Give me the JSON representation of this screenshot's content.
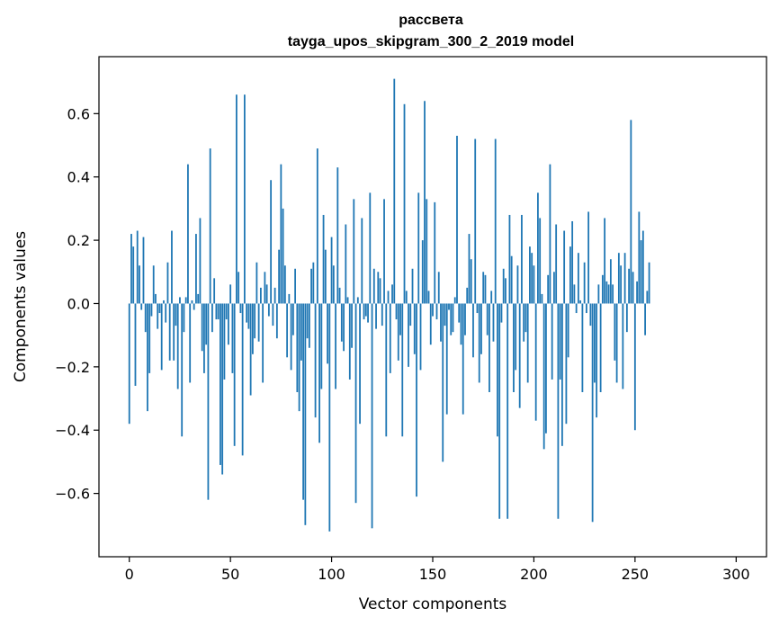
{
  "chart_data": {
    "type": "bar",
    "title": "рассвета",
    "subtitle": "tayga_upos_skipgram_300_2_2019 model",
    "xlabel": "Vector components",
    "ylabel": "Components values",
    "xlim": [
      -15,
      315
    ],
    "ylim": [
      -0.8,
      0.78
    ],
    "x_ticks": [
      0,
      50,
      100,
      150,
      200,
      250,
      300
    ],
    "y_ticks": [
      -0.6,
      -0.4,
      -0.2,
      0.0,
      0.2,
      0.4,
      0.6
    ],
    "x_tick_labels": [
      "0",
      "50",
      "100",
      "150",
      "200",
      "250",
      "300"
    ],
    "y_tick_labels": [
      "−0.6",
      "−0.4",
      "−0.2",
      "0.0",
      "0.2",
      "0.4",
      "0.6"
    ],
    "grid": false,
    "bar_color": "#1f77b4",
    "values": [
      -0.38,
      0.22,
      0.18,
      -0.26,
      0.23,
      0.12,
      -0.02,
      0.21,
      -0.09,
      -0.34,
      -0.22,
      -0.04,
      0.12,
      0.03,
      -0.08,
      -0.03,
      -0.21,
      0.01,
      -0.06,
      0.13,
      -0.18,
      0.23,
      -0.18,
      -0.07,
      -0.27,
      0.02,
      -0.42,
      -0.09,
      0.02,
      0.44,
      -0.25,
      0.01,
      -0.02,
      0.22,
      0.03,
      0.27,
      -0.15,
      -0.22,
      -0.13,
      -0.62,
      0.49,
      -0.09,
      0.08,
      -0.05,
      -0.05,
      -0.51,
      -0.54,
      -0.24,
      -0.05,
      -0.13,
      0.06,
      -0.22,
      -0.45,
      0.66,
      0.1,
      -0.03,
      -0.48,
      0.66,
      -0.06,
      -0.08,
      -0.29,
      -0.16,
      -0.11,
      0.13,
      -0.12,
      0.05,
      -0.25,
      0.1,
      0.06,
      -0.04,
      0.39,
      -0.07,
      0.05,
      -0.11,
      0.17,
      0.44,
      0.3,
      0.12,
      -0.17,
      0.03,
      -0.21,
      -0.1,
      0.11,
      -0.28,
      -0.34,
      -0.18,
      -0.62,
      -0.7,
      -0.11,
      -0.14,
      0.11,
      0.13,
      -0.36,
      0.49,
      -0.44,
      -0.27,
      0.28,
      0.17,
      -0.19,
      -0.72,
      0.21,
      0.12,
      -0.27,
      0.43,
      0.05,
      -0.12,
      -0.15,
      0.25,
      0.02,
      -0.24,
      -0.14,
      0.33,
      -0.63,
      0.02,
      -0.38,
      0.27,
      -0.05,
      -0.04,
      -0.06,
      0.35,
      -0.71,
      0.11,
      -0.08,
      0.1,
      0.08,
      -0.07,
      0.33,
      -0.42,
      0.04,
      -0.22,
      0.06,
      0.71,
      -0.05,
      -0.18,
      -0.1,
      -0.42,
      0.63,
      0.04,
      -0.2,
      -0.07,
      0.11,
      -0.16,
      -0.61,
      0.35,
      -0.21,
      0.2,
      0.64,
      0.33,
      0.04,
      -0.13,
      -0.04,
      0.32,
      -0.05,
      0.1,
      -0.12,
      -0.5,
      -0.07,
      -0.35,
      -0.02,
      -0.1,
      -0.09,
      0.02,
      0.53,
      -0.06,
      -0.13,
      -0.35,
      -0.1,
      0.05,
      0.22,
      0.14,
      -0.17,
      0.52,
      -0.03,
      -0.25,
      -0.16,
      0.1,
      0.09,
      -0.1,
      -0.28,
      0.04,
      -0.12,
      0.52,
      -0.42,
      -0.68,
      -0.06,
      0.11,
      0.08,
      -0.68,
      0.28,
      0.15,
      -0.28,
      -0.21,
      0.12,
      -0.33,
      0.28,
      -0.12,
      -0.09,
      -0.25,
      0.18,
      0.16,
      0.12,
      -0.37,
      0.35,
      0.27,
      0.03,
      -0.46,
      -0.41,
      0.09,
      0.44,
      -0.24,
      0.1,
      0.25,
      -0.68,
      -0.24,
      -0.45,
      0.23,
      -0.38,
      -0.17,
      0.18,
      0.26,
      0.06,
      -0.03,
      0.16,
      0.01,
      -0.28,
      0.13,
      -0.03,
      0.29,
      -0.07,
      -0.69,
      -0.25,
      -0.36,
      0.06,
      -0.28,
      0.09,
      0.27,
      0.07,
      0.06,
      0.14,
      0.06,
      -0.18,
      -0.25,
      0.16,
      0.12,
      -0.27,
      0.16,
      -0.09,
      0.11,
      0.58,
      0.1,
      -0.4,
      0.07,
      0.29,
      0.2,
      0.23,
      -0.1,
      0.04,
      0.13
    ]
  }
}
